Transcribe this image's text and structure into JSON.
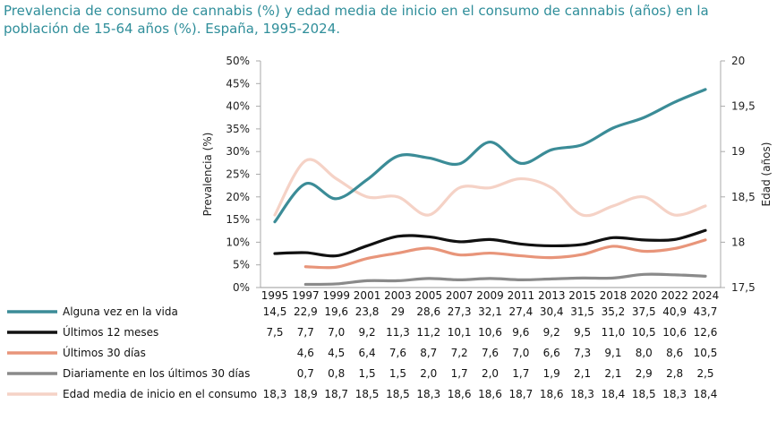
{
  "title": "Prevalencia de consumo de cannabis (%) y edad media de inicio en el consumo de cannabis (años) en la población de 15-64 años (%). España, 1995-2024.",
  "chart_data": {
    "type": "line",
    "title": "Prevalencia de consumo de cannabis (%) y edad media de inicio en el consumo de cannabis (años) en la población de 15-64 años (%). España, 1995-2024.",
    "categories": [
      "1995",
      "1997",
      "1999",
      "2001",
      "2003",
      "2005",
      "2007",
      "2009",
      "2011",
      "2013",
      "2015",
      "2018",
      "2020",
      "2022",
      "2024"
    ],
    "ylabel": "Prevalencia (%)",
    "ylabel_right": "Edad (años)",
    "ylim": [
      0,
      50
    ],
    "ylim_right": [
      17.5,
      20
    ],
    "yticks": [
      "0%",
      "5%",
      "10%",
      "15%",
      "20%",
      "25%",
      "30%",
      "35%",
      "40%",
      "45%",
      "50%"
    ],
    "yticks_right": [
      "17,5",
      "18",
      "18,5",
      "19",
      "19,5",
      "20"
    ],
    "grid": false,
    "legend": "bottom-table",
    "series": [
      {
        "name": "Alguna vez en la vida",
        "axis": "left",
        "color": "#3b8c97",
        "values": [
          14.5,
          22.9,
          19.6,
          23.8,
          29,
          28.6,
          27.3,
          32.1,
          27.4,
          30.4,
          31.5,
          35.2,
          37.5,
          40.9,
          43.7
        ],
        "labels": [
          "14,5",
          "22,9",
          "19,6",
          "23,8",
          "29",
          "28,6",
          "27,3",
          "32,1",
          "27,4",
          "30,4",
          "31,5",
          "35,2",
          "37,5",
          "40,9",
          "43,7"
        ]
      },
      {
        "name": "Últimos 12 meses",
        "axis": "left",
        "color": "#111111",
        "values": [
          7.5,
          7.7,
          7.0,
          9.2,
          11.3,
          11.2,
          10.1,
          10.6,
          9.6,
          9.2,
          9.5,
          11.0,
          10.5,
          10.6,
          12.6
        ],
        "labels": [
          "7,5",
          "7,7",
          "7,0",
          "9,2",
          "11,3",
          "11,2",
          "10,1",
          "10,6",
          "9,6",
          "9,2",
          "9,5",
          "11,0",
          "10,5",
          "10,6",
          "12,6"
        ]
      },
      {
        "name": "Últimos 30 días",
        "axis": "left",
        "color": "#e8957a",
        "values": [
          null,
          4.6,
          4.5,
          6.4,
          7.6,
          8.7,
          7.2,
          7.6,
          7.0,
          6.6,
          7.3,
          9.1,
          8.0,
          8.6,
          10.5
        ],
        "labels": [
          "",
          "4,6",
          "4,5",
          "6,4",
          "7,6",
          "8,7",
          "7,2",
          "7,6",
          "7,0",
          "6,6",
          "7,3",
          "9,1",
          "8,0",
          "8,6",
          "10,5"
        ]
      },
      {
        "name": "Diariamente en los últimos 30 días",
        "axis": "left",
        "color": "#8a8a8a",
        "values": [
          null,
          0.7,
          0.8,
          1.5,
          1.5,
          2.0,
          1.7,
          2.0,
          1.7,
          1.9,
          2.1,
          2.1,
          2.9,
          2.8,
          2.5
        ],
        "labels": [
          "",
          "0,7",
          "0,8",
          "1,5",
          "1,5",
          "2,0",
          "1,7",
          "2,0",
          "1,7",
          "1,9",
          "2,1",
          "2,1",
          "2,9",
          "2,8",
          "2,5"
        ]
      },
      {
        "name": "Edad media de inicio en el consumo",
        "axis": "right",
        "color": "#f5d2c6",
        "values": [
          18.3,
          18.9,
          18.7,
          18.5,
          18.5,
          18.3,
          18.6,
          18.6,
          18.7,
          18.6,
          18.3,
          18.4,
          18.5,
          18.3,
          18.4
        ],
        "labels": [
          "18,3",
          "18,9",
          "18,7",
          "18,5",
          "18,5",
          "18,3",
          "18,6",
          "18,6",
          "18,7",
          "18,6",
          "18,3",
          "18,4",
          "18,5",
          "18,3",
          "18,4"
        ]
      }
    ]
  }
}
